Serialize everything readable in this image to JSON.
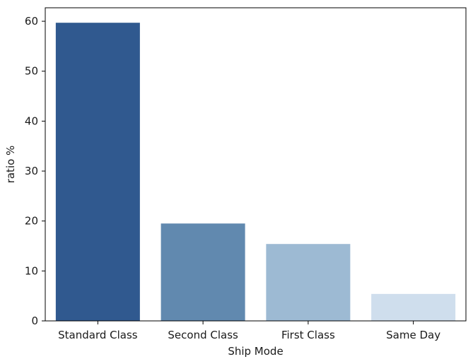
{
  "chart_data": {
    "type": "bar",
    "categories": [
      "Standard Class",
      "Second Class",
      "First Class",
      "Same Day"
    ],
    "values": [
      59.7,
      19.5,
      15.4,
      5.4
    ],
    "colors": [
      "#30598f",
      "#6189af",
      "#9dbad3",
      "#cfdeed"
    ],
    "title": "",
    "xlabel": "Ship Mode",
    "ylabel": "ratio %",
    "ylim": [
      0,
      62.7
    ],
    "yticks": [
      0,
      10,
      20,
      30,
      40,
      50,
      60
    ],
    "grid": false,
    "legend": "none"
  }
}
